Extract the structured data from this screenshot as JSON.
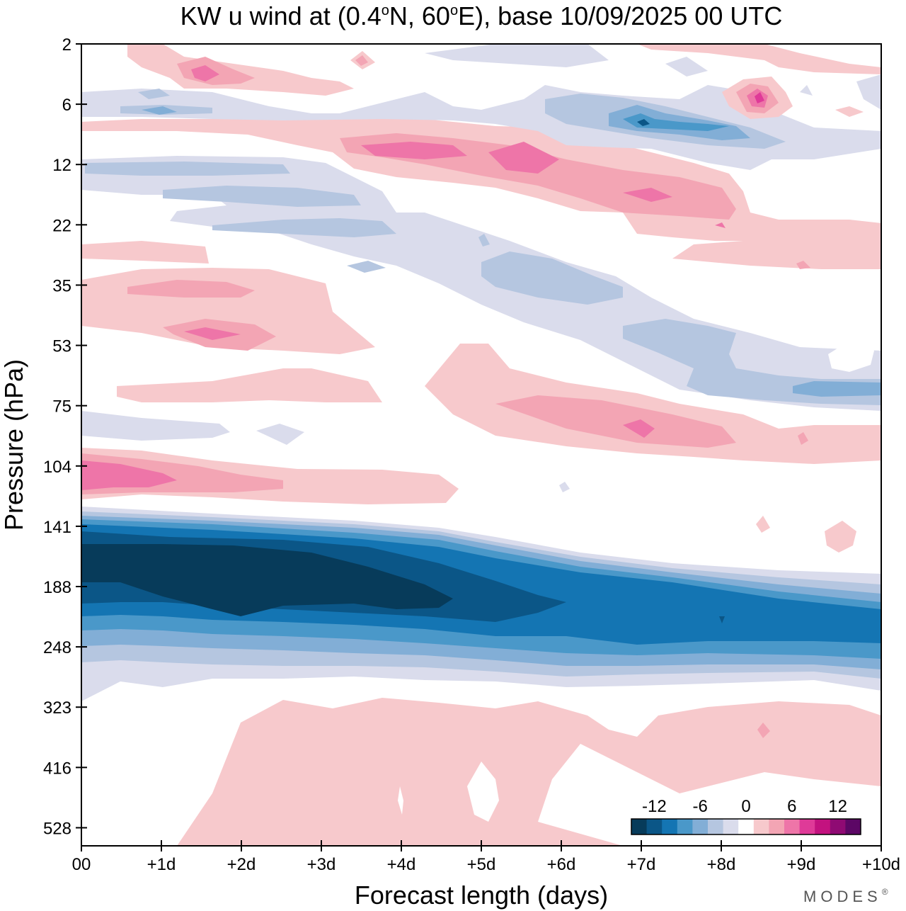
{
  "chart_data": {
    "type": "heatmap",
    "subtype": "filled-contour",
    "title": {
      "main": "KW u wind at (0.4",
      "deg1": "o",
      "mid": "N, 60",
      "deg2": "o",
      "tail": "E),  base 10/09/2025  00 UTC"
    },
    "xlabel": "Forecast length (days)",
    "ylabel": "Pressure (hPa)",
    "x_ticks": [
      "00",
      "+1d",
      "+2d",
      "+3d",
      "+4d",
      "+5d",
      "+6d",
      "+7d",
      "+8d",
      "+9d",
      "+10d"
    ],
    "xlim": [
      0,
      10
    ],
    "y_ticks": [
      "2",
      "6",
      "12",
      "22",
      "35",
      "53",
      "75",
      "104",
      "141",
      "188",
      "248",
      "323",
      "416",
      "528"
    ],
    "y_scale": "log-pressure",
    "colorbar": {
      "levels": [
        -14,
        -12,
        -10,
        -8,
        -6,
        -4,
        -2,
        0,
        2,
        4,
        6,
        8,
        10,
        12,
        14
      ],
      "tick_labels": [
        "-12",
        "-6",
        "0",
        "6",
        "12"
      ],
      "tick_values": [
        -12,
        -6,
        0,
        6,
        12
      ],
      "colors": [
        "#073b5a",
        "#0b5687",
        "#1475b3",
        "#4a98c9",
        "#82aed6",
        "#b5c6e0",
        "#dadcec",
        "#ffffff",
        "#f7c9cc",
        "#f3a5b4",
        "#ee75a8",
        "#df3a98",
        "#c3127f",
        "#8f0a73",
        "#5c0765"
      ]
    },
    "features": [
      {
        "name": "strong easterly jet core",
        "pressure_hPa": [
          141,
          248
        ],
        "days": [
          0,
          10
        ],
        "value_min": -14
      },
      {
        "name": "upper stratospheric westerly band",
        "pressure_hPa": [
          9,
          22
        ],
        "days": [
          3,
          8
        ],
        "value_max": 8
      },
      {
        "name": "lower stratospheric westerly patch",
        "pressure_hPa": [
          90,
          115
        ],
        "days": [
          0,
          5
        ],
        "value_max": 8
      },
      {
        "name": "weak westerlies mid troposphere",
        "pressure_hPa": [
          300,
          560
        ],
        "days": [
          2,
          10
        ],
        "value_max": 2
      }
    ]
  },
  "branding": {
    "logo_text": "MODES",
    "logo_mark": "®"
  }
}
